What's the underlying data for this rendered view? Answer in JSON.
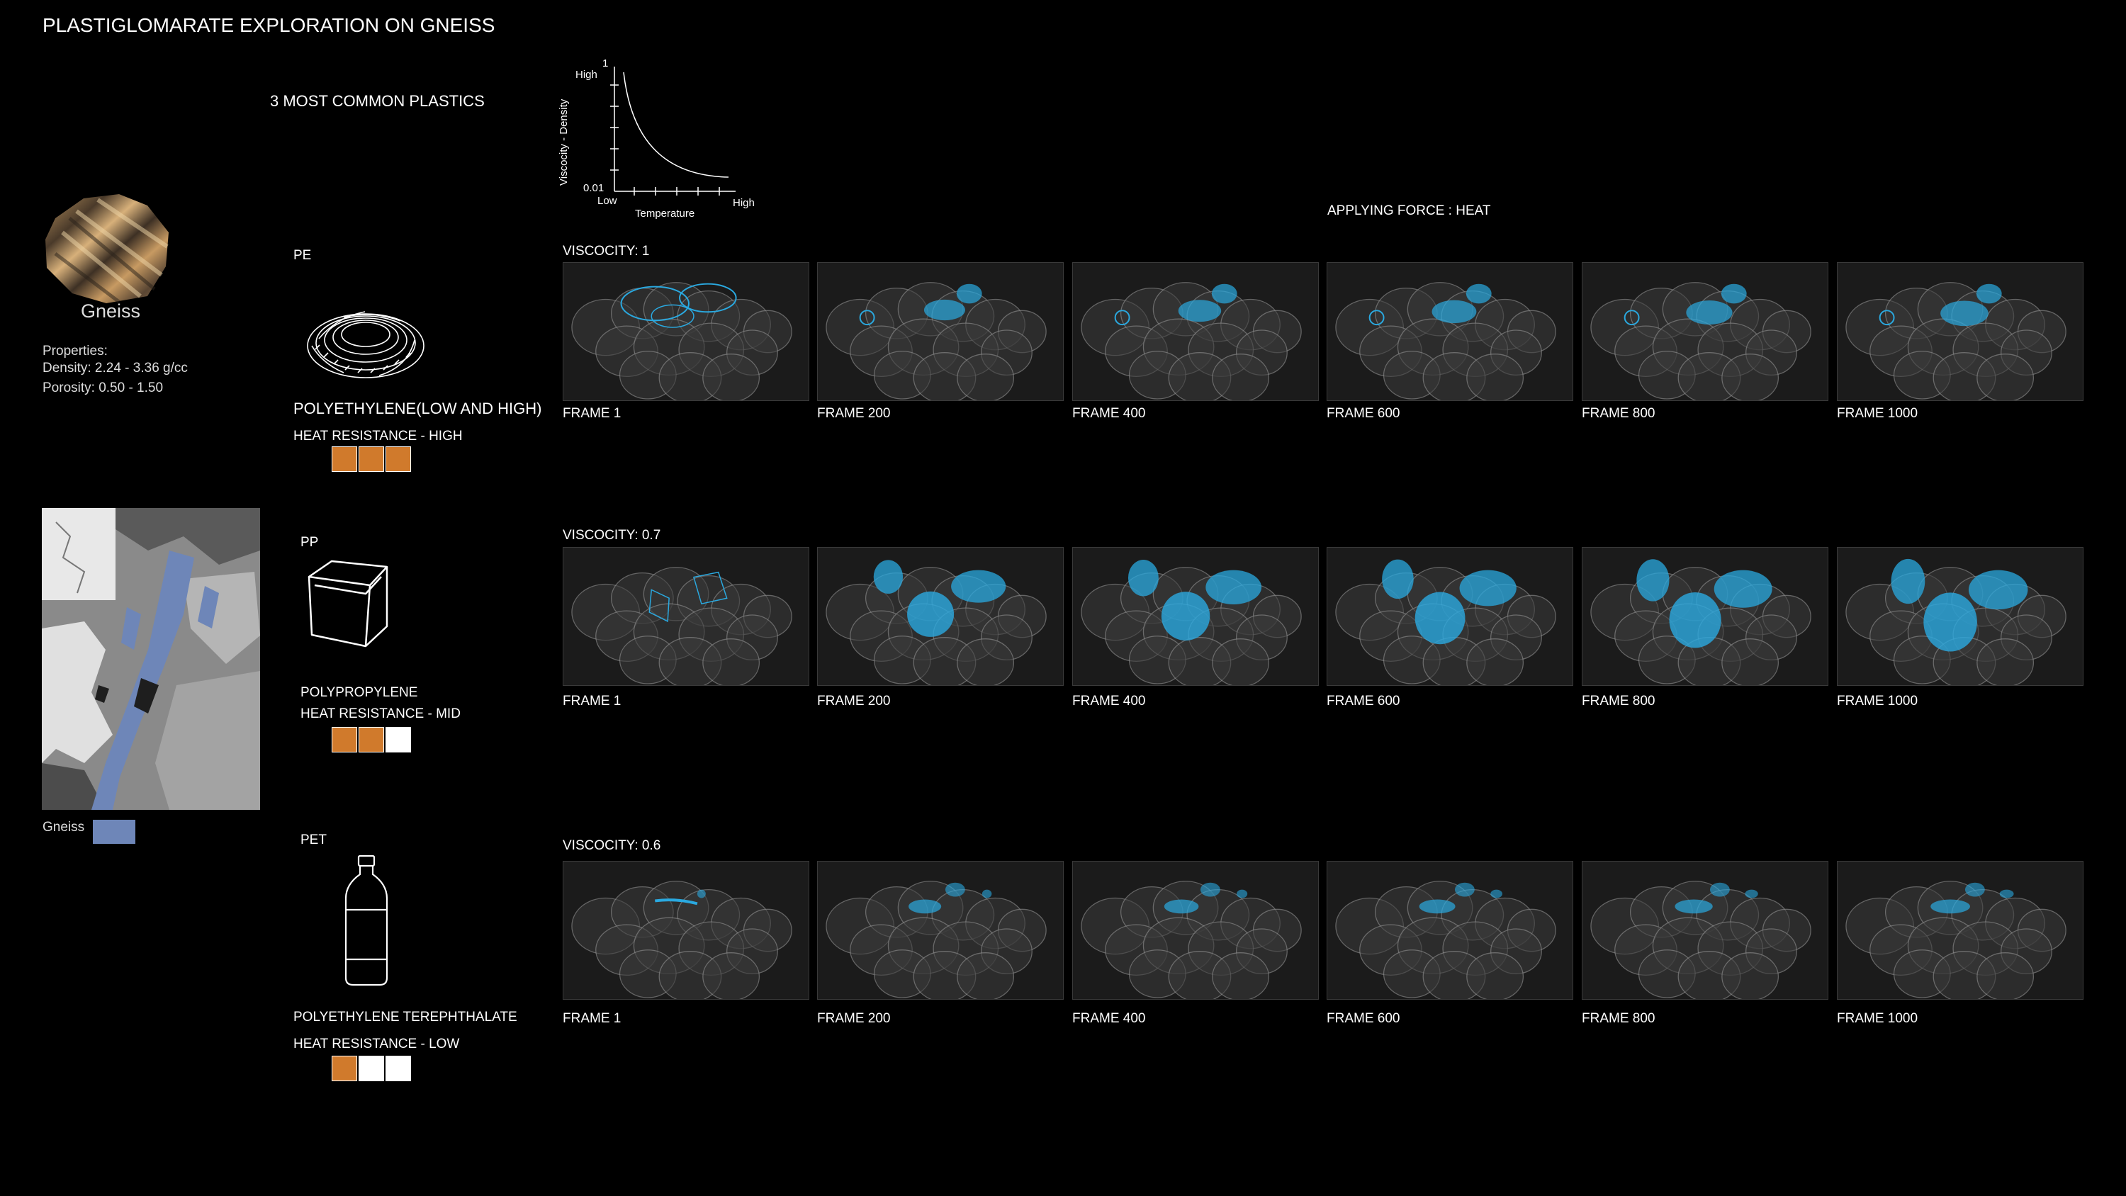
{
  "title": "PLASTIGLOMARATE EXPLORATION ON GNEISS",
  "rock": {
    "name": "Gneiss",
    "properties_heading": "Properties:",
    "density": "Density: 2.24 - 3.36 g/cc",
    "porosity": "Porosity: 0.50 - 1.50",
    "map_legend_label": "Gneiss",
    "map_legend_color": "#6e86b8"
  },
  "plastics_heading": "3 MOST COMMON PLASTICS",
  "force_label": "APPLYING FORCE : HEAT",
  "graph": {
    "ylabel": "Viscocity - Density",
    "xlabel": "Temperature",
    "y_top_value": "1",
    "y_top_label": "High",
    "y_bottom_value": "0.01",
    "x_left_label": "Low",
    "x_right_label": "High"
  },
  "colors": {
    "orange": "#d07a2c",
    "empty": "#ffffff",
    "blob": "#2aa9e0"
  },
  "plastics": [
    {
      "abbr": "PE",
      "name": "POLYETHYLENE(LOW AND HIGH)",
      "heat": "HEAT RESISTANCE - HIGH",
      "heat_level": 3,
      "viscosity": "VISCOCITY: 1",
      "frames": [
        "FRAME 1",
        "FRAME 200",
        "FRAME 400",
        "FRAME 600",
        "FRAME 800",
        "FRAME 1000"
      ]
    },
    {
      "abbr": "PP",
      "name": "POLYPROPYLENE",
      "heat": "HEAT RESISTANCE - MID",
      "heat_level": 2,
      "viscosity": "VISCOCITY: 0.7",
      "frames": [
        "FRAME 1",
        "FRAME 200",
        "FRAME 400",
        "FRAME 600",
        "FRAME 800",
        "FRAME 1000"
      ]
    },
    {
      "abbr": "PET",
      "name": "POLYETHYLENE TEREPHTHALATE",
      "heat": "HEAT RESISTANCE - LOW",
      "heat_level": 1,
      "viscosity": "VISCOCITY: 0.6",
      "frames": [
        "FRAME 1",
        "FRAME 200",
        "FRAME 400",
        "FRAME 600",
        "FRAME 800",
        "FRAME 1000"
      ]
    }
  ]
}
